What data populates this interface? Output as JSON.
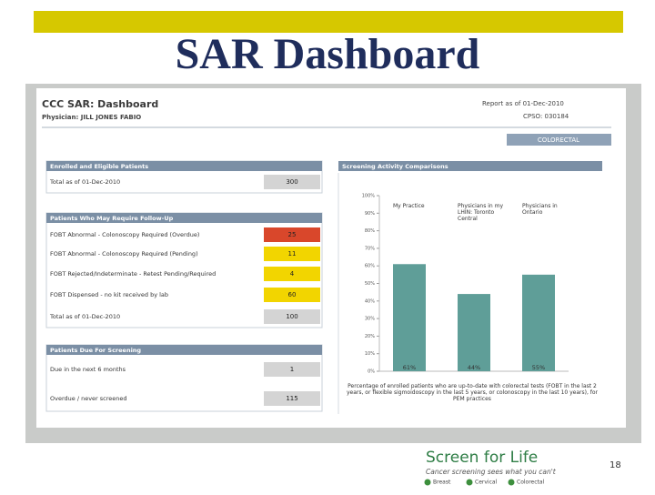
{
  "slide": {
    "title": "SAR Dashboard",
    "page_number": "18",
    "logo": {
      "title": "Screen for Life",
      "tagline": "Cancer screening sees what you can't",
      "programs": [
        "Breast",
        "Cervical",
        "Colorectal"
      ]
    }
  },
  "dashboard": {
    "title": "CCC SAR: Dashboard",
    "physician": "Physician: JILL JONES FABIO",
    "report_date": "Report as of 01-Dec-2010",
    "cpso": "CPSO: 030184",
    "tab": "COLORECTAL",
    "panels": [
      {
        "title": "Enrolled and Eligible Patients",
        "rows": [
          {
            "label": "Total as of 01-Dec-2010",
            "value": 300,
            "color": "#d4d4d4"
          }
        ]
      },
      {
        "title": "Patients Who May Require Follow-Up",
        "rows": [
          {
            "label": "FOBT Abnormal - Colonoscopy Required (Overdue)",
            "value": 25,
            "color": "#d9472b"
          },
          {
            "label": "FOBT Abnormal - Colonoscopy Required (Pending)",
            "value": 11,
            "color": "#f2d500"
          },
          {
            "label": "FOBT Rejected/Indeterminate - Retest Pending/Required",
            "value": 4,
            "color": "#f2d500"
          },
          {
            "label": "FOBT Dispensed - no kit received by lab",
            "value": 60,
            "color": "#f2d500"
          },
          {
            "label": "Total as of 01-Dec-2010",
            "value": 100,
            "color": "#d4d4d4"
          }
        ]
      },
      {
        "title": "Patients Due For Screening",
        "rows": [
          {
            "label": "Due in the next 6 months",
            "value": 1,
            "color": "#d4d4d4"
          },
          {
            "label": "Overdue / never screened",
            "value": 115,
            "color": "#d4d4d4"
          }
        ]
      }
    ]
  },
  "chart_data": {
    "type": "bar",
    "title": "Screening Activity Comparisons",
    "categories": [
      "My Practice",
      "Physicians in my LHIN: Toronto Central",
      "Physicians in Ontario"
    ],
    "values": [
      61,
      44,
      55
    ],
    "value_labels": [
      "61%",
      "44%",
      "55%"
    ],
    "color": "#5f9e98",
    "ylim": [
      0,
      100
    ],
    "yticks": [
      {
        "value": 0,
        "label": "0%"
      },
      {
        "value": 10,
        "label": "10%"
      },
      {
        "value": 20,
        "label": "20%"
      },
      {
        "value": 30,
        "label": "30%"
      },
      {
        "value": 40,
        "label": "40%"
      },
      {
        "value": 50,
        "label": "50%"
      },
      {
        "value": 60,
        "label": "60%"
      },
      {
        "value": 70,
        "label": "70%"
      },
      {
        "value": 80,
        "label": "80%"
      },
      {
        "value": 90,
        "label": "90%"
      },
      {
        "value": 100,
        "label": "100%"
      }
    ],
    "caption": "Percentage of enrolled patients who are up-to-date with colorectal tests (FOBT in the last 2 years, or flexible sigmoidoscopy in the last 5 years, or colonoscopy in the last 10 years), for PEM practices"
  }
}
